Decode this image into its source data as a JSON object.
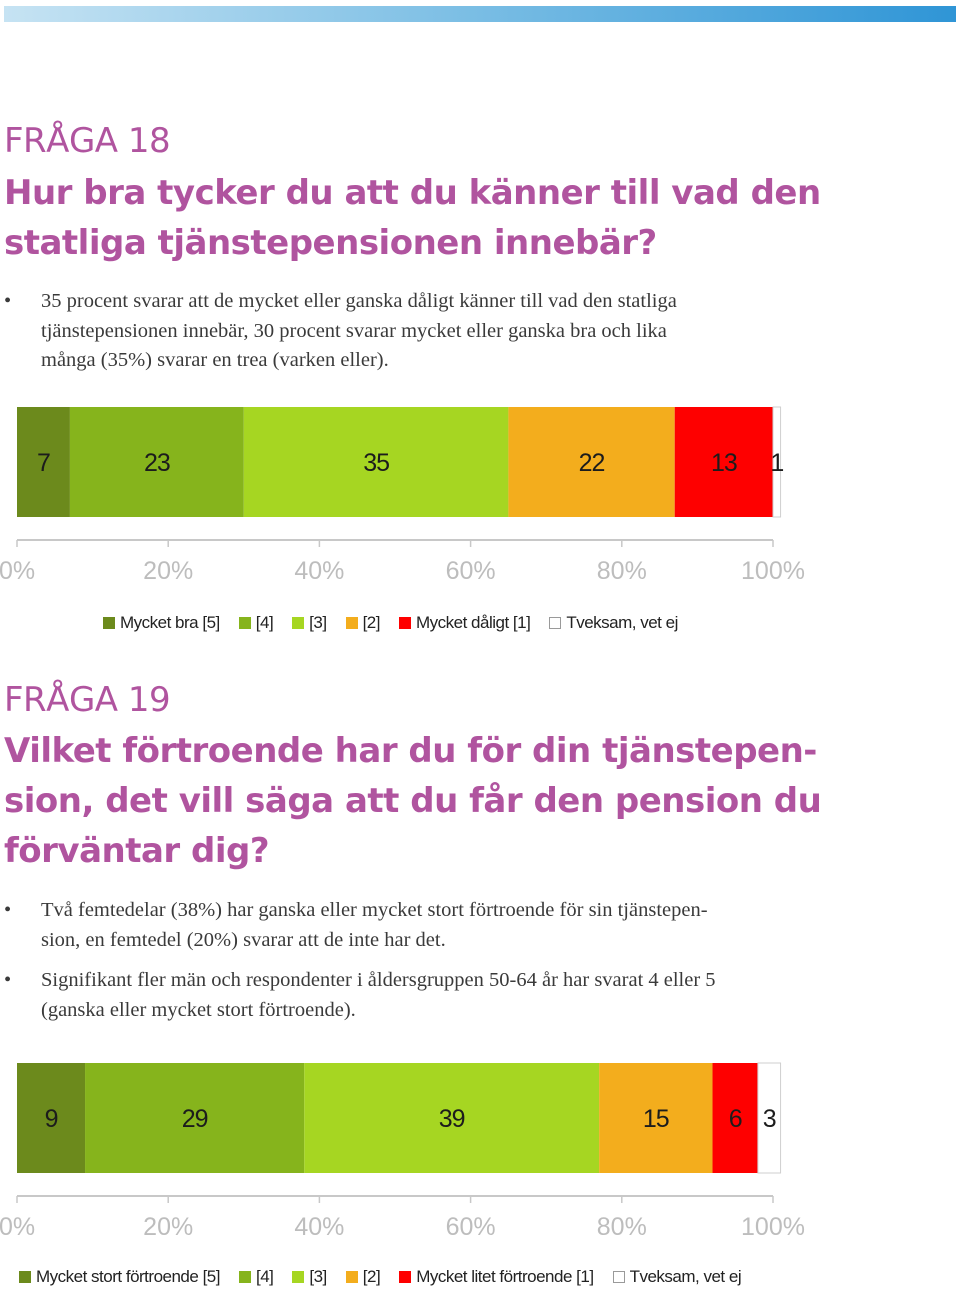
{
  "sections": [
    {
      "label": "FRÅGA 18",
      "title_lines": [
        "Hur bra tycker du att du känner till vad den",
        "statliga tjänstepensionen innebär?"
      ],
      "bullets": [
        [
          "35 procent svarar att de mycket eller ganska dåligt känner till vad den statliga",
          "tjänstepensionen innebär, 30 procent svarar mycket eller ganska bra och lika",
          "många (35%) svarar en trea (varken eller)."
        ]
      ],
      "legend": [
        "Mycket bra [5]",
        "[4]",
        "[3]",
        "[2]",
        "Mycket dåligt [1]",
        "Tveksam, vet ej"
      ]
    },
    {
      "label": "FRÅGA 19",
      "title_lines": [
        "Vilket förtroende har du för din tjänstepen-",
        "sion, det vill säga att du får den pension du",
        "förväntar dig?"
      ],
      "bullets": [
        [
          "Två femtedelar (38%) har ganska eller mycket stort förtroende för sin tjänstepen-",
          "sion, en femtedel (20%) svarar att de inte har det."
        ],
        [
          "Signifikant fler män och respondenter i åldersgruppen 50-64 år har svarat 4 eller 5",
          "(ganska eller mycket stort förtroende)."
        ]
      ],
      "legend": [
        "Mycket stort förtroende [5]",
        "[4]",
        "[3]",
        "[2]",
        "Mycket litet förtroende [1]",
        "Tveksam, vet ej"
      ]
    }
  ],
  "chart_data": [
    {
      "type": "bar",
      "orientation": "horizontal-stacked-100",
      "series": [
        {
          "name": "Mycket bra [5]",
          "values": [
            7
          ],
          "color": "#6c8a1c"
        },
        {
          "name": "[4]",
          "values": [
            23
          ],
          "color": "#86b41c"
        },
        {
          "name": "[3]",
          "values": [
            35
          ],
          "color": "#a6d622"
        },
        {
          "name": "[2]",
          "values": [
            22
          ],
          "color": "#f3ad1d"
        },
        {
          "name": "Mycket dåligt [1]",
          "values": [
            13
          ],
          "color": "#fe0000"
        },
        {
          "name": "Tveksam, vet ej",
          "values": [
            1
          ],
          "color": "#ffffff"
        }
      ],
      "xlim": [
        0,
        100
      ],
      "x_ticks": [
        "0%",
        "20%",
        "40%",
        "60%",
        "80%",
        "100%"
      ],
      "legend_position": "bottom",
      "grid": false
    },
    {
      "type": "bar",
      "orientation": "horizontal-stacked-100",
      "series": [
        {
          "name": "Mycket stort förtroende [5]",
          "values": [
            9
          ],
          "color": "#6c8a1c"
        },
        {
          "name": "[4]",
          "values": [
            29
          ],
          "color": "#86b41c"
        },
        {
          "name": "[3]",
          "values": [
            39
          ],
          "color": "#a6d622"
        },
        {
          "name": "[2]",
          "values": [
            15
          ],
          "color": "#f3ad1d"
        },
        {
          "name": "Mycket litet förtroende [1]",
          "values": [
            6
          ],
          "color": "#fe0000"
        },
        {
          "name": "Tveksam, vet ej",
          "values": [
            3
          ],
          "color": "#ffffff"
        }
      ],
      "xlim": [
        0,
        100
      ],
      "x_ticks": [
        "0%",
        "20%",
        "40%",
        "60%",
        "80%",
        "100%"
      ],
      "legend_position": "bottom",
      "grid": false
    }
  ]
}
